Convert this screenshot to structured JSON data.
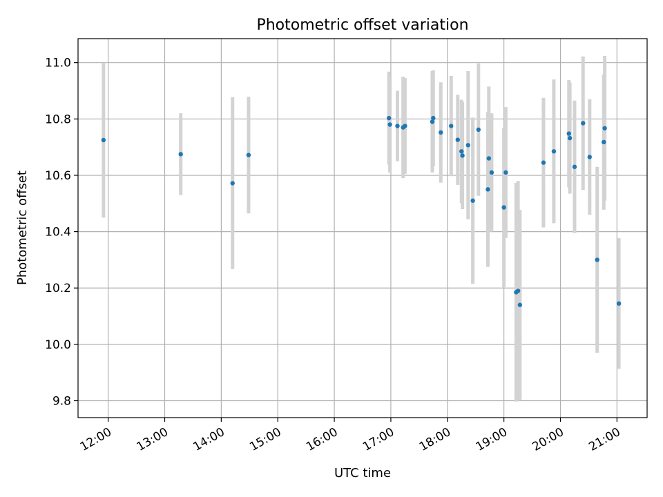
{
  "chart_data": {
    "type": "scatter",
    "title": "Photometric offset variation",
    "xlabel": "UTC time",
    "ylabel": "Photometric offset",
    "xlim": [
      "11:28",
      "21:32"
    ],
    "ylim": [
      9.74,
      11.085
    ],
    "x_ticks": [
      "12:00",
      "13:00",
      "14:00",
      "15:00",
      "16:00",
      "17:00",
      "18:00",
      "19:00",
      "20:00",
      "21:00"
    ],
    "y_ticks": [
      "9.8",
      "10.0",
      "10.2",
      "10.4",
      "10.6",
      "10.8",
      "11.0"
    ],
    "grid": true,
    "tick_rotation": 30,
    "point_color": "#1f77b4",
    "errorbar_color": "#d3d3d3",
    "points": [
      {
        "x": "11:55",
        "y": 10.725,
        "err": 0.275
      },
      {
        "x": "13:17",
        "y": 10.675,
        "err": 0.145
      },
      {
        "x": "14:12",
        "y": 10.572,
        "err": 0.305
      },
      {
        "x": "14:29",
        "y": 10.672,
        "err": 0.207
      },
      {
        "x": "16:58",
        "y": 10.803,
        "err": 0.165
      },
      {
        "x": "16:59",
        "y": 10.78,
        "err": 0.17
      },
      {
        "x": "17:07",
        "y": 10.775,
        "err": 0.125
      },
      {
        "x": "17:13",
        "y": 10.77,
        "err": 0.18
      },
      {
        "x": "17:15",
        "y": 10.775,
        "err": 0.17
      },
      {
        "x": "17:44",
        "y": 10.79,
        "err": 0.18
      },
      {
        "x": "17:45",
        "y": 10.803,
        "err": 0.17
      },
      {
        "x": "17:53",
        "y": 10.752,
        "err": 0.178
      },
      {
        "x": "18:04",
        "y": 10.775,
        "err": 0.178
      },
      {
        "x": "18:11",
        "y": 10.726,
        "err": 0.16
      },
      {
        "x": "18:15",
        "y": 10.685,
        "err": 0.183
      },
      {
        "x": "18:16",
        "y": 10.67,
        "err": 0.19
      },
      {
        "x": "18:22",
        "y": 10.707,
        "err": 0.263
      },
      {
        "x": "18:27",
        "y": 10.51,
        "err": 0.295
      },
      {
        "x": "18:33",
        "y": 10.762,
        "err": 0.235
      },
      {
        "x": "18:43",
        "y": 10.55,
        "err": 0.275
      },
      {
        "x": "18:44",
        "y": 10.66,
        "err": 0.255
      },
      {
        "x": "18:47",
        "y": 10.61,
        "err": 0.21
      },
      {
        "x": "19:00",
        "y": 10.486,
        "err": 0.283
      },
      {
        "x": "19:02",
        "y": 10.61,
        "err": 0.232
      },
      {
        "x": "19:13",
        "y": 10.185,
        "err": 0.388
      },
      {
        "x": "19:15",
        "y": 10.19,
        "err": 0.39
      },
      {
        "x": "19:17",
        "y": 10.14,
        "err": 0.337
      },
      {
        "x": "19:42",
        "y": 10.645,
        "err": 0.23
      },
      {
        "x": "19:53",
        "y": 10.685,
        "err": 0.255
      },
      {
        "x": "20:09",
        "y": 10.748,
        "err": 0.19
      },
      {
        "x": "20:10",
        "y": 10.732,
        "err": 0.197
      },
      {
        "x": "20:15",
        "y": 10.63,
        "err": 0.235
      },
      {
        "x": "20:24",
        "y": 10.785,
        "err": 0.237
      },
      {
        "x": "20:31",
        "y": 10.665,
        "err": 0.205
      },
      {
        "x": "20:39",
        "y": 10.3,
        "err": 0.33
      },
      {
        "x": "20:46",
        "y": 10.718,
        "err": 0.24
      },
      {
        "x": "20:47",
        "y": 10.767,
        "err": 0.257
      },
      {
        "x": "21:02",
        "y": 10.145,
        "err": 0.232
      }
    ]
  }
}
